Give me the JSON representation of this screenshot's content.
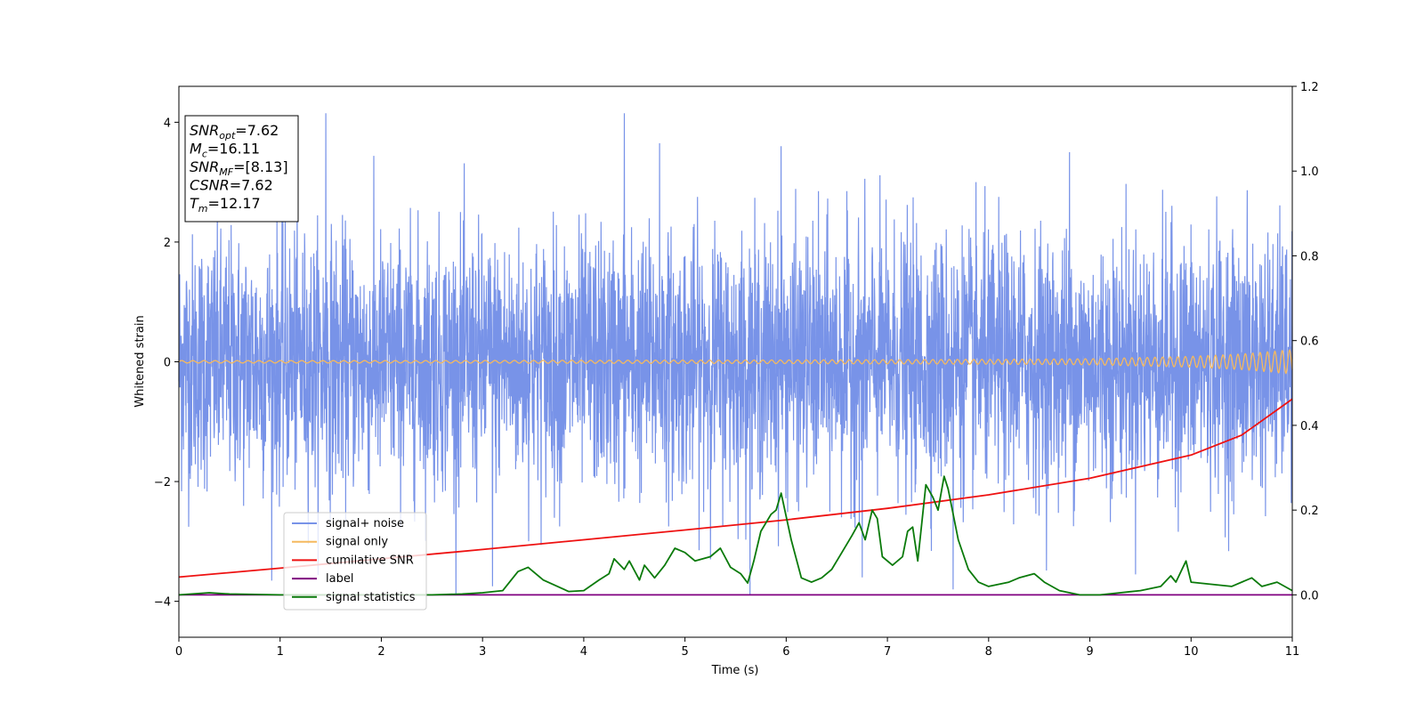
{
  "chart_data": {
    "type": "line",
    "title": "",
    "xlabel": "Time (s)",
    "ylabel": "Whitened strain",
    "xlim": [
      0,
      11
    ],
    "ylim": [
      -4.6,
      4.6
    ],
    "y2lim": [
      -0.1,
      1.2
    ],
    "x_ticks": [
      "0",
      "1",
      "2",
      "3",
      "4",
      "5",
      "6",
      "7",
      "8",
      "9",
      "10",
      "11"
    ],
    "y_ticks": [
      "−4",
      "−2",
      "0",
      "2",
      "4"
    ],
    "y2_ticks": [
      "0.0",
      "0.2",
      "0.4",
      "0.6",
      "0.8",
      "1.0",
      "1.2"
    ],
    "grid": false,
    "legend_position": "lower-left",
    "annotation": [
      {
        "base": "SNR",
        "sub": "opt",
        "value": "=7.62"
      },
      {
        "base": "M",
        "sub": "c",
        "value": "=16.11"
      },
      {
        "base": "SNR",
        "sub": "MF",
        "value": "=[8.13]"
      },
      {
        "base": "CSNR",
        "sub": "",
        "value": "=7.62"
      },
      {
        "base": "T",
        "sub": "m",
        "value": "=12.17"
      }
    ],
    "series": [
      {
        "name": "signal+ noise",
        "color": "#7893e8",
        "axis": "left",
        "approx_range": [
          -3.9,
          4.15
        ],
        "peaks": {
          "x": [
            1.45,
            4.4,
            4.75,
            5.95,
            8.8,
            6.75,
            3.1,
            7.65
          ],
          "y": [
            4.15,
            4.15,
            3.65,
            3.6,
            3.5,
            -3.6,
            -3.75,
            -3.8
          ]
        }
      },
      {
        "name": "signal only",
        "color": "#f5b95f",
        "axis": "left",
        "x": [
          0,
          2,
          4,
          6,
          8,
          9,
          10,
          10.5,
          11
        ],
        "amplitude": [
          0.02,
          0.02,
          0.025,
          0.03,
          0.04,
          0.05,
          0.09,
          0.13,
          0.2
        ]
      },
      {
        "name": "cumilative SNR",
        "color": "#ee1111",
        "axis": "right",
        "x": [
          0,
          1,
          2,
          3,
          4,
          5,
          6,
          7,
          8,
          9,
          10,
          10.5,
          11
        ],
        "y": [
          0.042,
          0.063,
          0.085,
          0.107,
          0.13,
          0.153,
          0.177,
          0.204,
          0.236,
          0.275,
          0.33,
          0.377,
          0.462
        ]
      },
      {
        "name": "label",
        "color": "#800080",
        "axis": "right",
        "x": [
          0,
          11
        ],
        "y": [
          0,
          0
        ]
      },
      {
        "name": "signal statistics",
        "color": "#0a7a0a",
        "axis": "right",
        "x": [
          0,
          0.3,
          0.5,
          1,
          1.5,
          2,
          2.5,
          2.8,
          3,
          3.2,
          3.35,
          3.45,
          3.6,
          3.85,
          4,
          4.15,
          4.25,
          4.3,
          4.4,
          4.45,
          4.55,
          4.6,
          4.7,
          4.8,
          4.9,
          5,
          5.1,
          5.25,
          5.35,
          5.45,
          5.55,
          5.62,
          5.68,
          5.75,
          5.85,
          5.9,
          5.95,
          6.05,
          6.15,
          6.25,
          6.35,
          6.45,
          6.55,
          6.65,
          6.72,
          6.78,
          6.85,
          6.9,
          6.95,
          7.05,
          7.15,
          7.2,
          7.25,
          7.3,
          7.38,
          7.45,
          7.5,
          7.56,
          7.6,
          7.7,
          7.8,
          7.9,
          8,
          8.1,
          8.2,
          8.3,
          8.45,
          8.55,
          8.7,
          8.9,
          9.1,
          9.3,
          9.5,
          9.7,
          9.8,
          9.85,
          9.95,
          10,
          10.2,
          10.4,
          10.55,
          10.6,
          10.7,
          10.85,
          11
        ],
        "y": [
          0.0,
          0.005,
          0.002,
          0.0,
          0.0,
          0.0,
          0.0,
          0.002,
          0.005,
          0.01,
          0.055,
          0.065,
          0.035,
          0.008,
          0.01,
          0.035,
          0.05,
          0.085,
          0.06,
          0.08,
          0.035,
          0.07,
          0.04,
          0.07,
          0.11,
          0.1,
          0.08,
          0.09,
          0.11,
          0.065,
          0.05,
          0.028,
          0.08,
          0.15,
          0.19,
          0.2,
          0.24,
          0.13,
          0.04,
          0.03,
          0.04,
          0.06,
          0.1,
          0.14,
          0.17,
          0.13,
          0.2,
          0.18,
          0.09,
          0.07,
          0.09,
          0.15,
          0.16,
          0.08,
          0.26,
          0.23,
          0.2,
          0.28,
          0.25,
          0.13,
          0.06,
          0.03,
          0.02,
          0.025,
          0.03,
          0.04,
          0.05,
          0.03,
          0.01,
          0.0,
          0.0,
          0.005,
          0.01,
          0.02,
          0.045,
          0.03,
          0.08,
          0.03,
          0.025,
          0.02,
          0.035,
          0.04,
          0.02,
          0.03,
          0.01
        ]
      }
    ]
  }
}
